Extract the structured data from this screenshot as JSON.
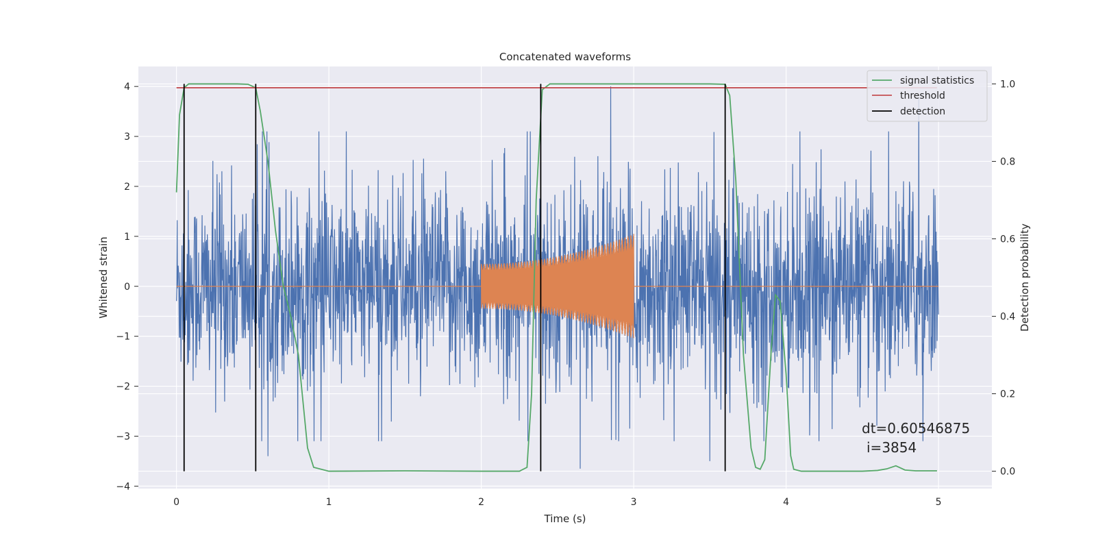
{
  "chart_data": {
    "type": "line",
    "title": "Concatenated waveforms",
    "xlabel": "Time (s)",
    "ylabel": "Whitened strain",
    "y2label": "Detection probability",
    "xlim": [
      -0.25,
      5.35
    ],
    "ylim": [
      -4.05,
      4.4
    ],
    "y2lim": [
      -0.045,
      1.045
    ],
    "xticks": [
      0,
      1,
      2,
      3,
      4,
      5
    ],
    "yticks": [
      -4,
      -3,
      -2,
      -1,
      0,
      1,
      2,
      3,
      4
    ],
    "y2ticks": [
      0.0,
      0.2,
      0.4,
      0.6,
      0.8,
      1.0
    ],
    "grid": true,
    "legend_position": "top-right",
    "colors": {
      "strain": "#4c72b0",
      "template": "#dd8452",
      "signal_statistics": "#55a868",
      "threshold": "#c44e52",
      "detection": "#000000",
      "background": "#eaeaf2",
      "grid": "#ffffff"
    },
    "series": [
      {
        "name": "signal statistics",
        "axis": "right",
        "x": [
          0.0,
          0.02,
          0.05,
          0.08,
          0.1,
          0.2,
          0.3,
          0.4,
          0.47,
          0.52,
          0.55,
          0.6,
          0.65,
          0.7,
          0.75,
          0.8,
          0.83,
          0.86,
          0.9,
          1.0,
          1.5,
          2.0,
          2.25,
          2.3,
          2.33,
          2.36,
          2.4,
          2.45,
          2.5,
          3.0,
          3.5,
          3.6,
          3.63,
          3.67,
          3.72,
          3.77,
          3.8,
          3.83,
          3.86,
          3.9,
          3.93,
          3.96,
          4.0,
          4.03,
          4.05,
          4.1,
          4.5,
          4.6,
          4.66,
          4.72,
          4.78,
          4.85,
          4.99
        ],
        "y": [
          0.72,
          0.92,
          0.99,
          1.0,
          1.0,
          1.0,
          1.0,
          1.0,
          0.999,
          0.99,
          0.93,
          0.8,
          0.62,
          0.48,
          0.4,
          0.3,
          0.18,
          0.06,
          0.01,
          0.0,
          0.001,
          0.0,
          0.0,
          0.01,
          0.2,
          0.7,
          0.985,
          1.0,
          1.0,
          1.0,
          1.0,
          0.999,
          0.97,
          0.75,
          0.3,
          0.06,
          0.01,
          0.005,
          0.03,
          0.3,
          0.455,
          0.44,
          0.25,
          0.04,
          0.005,
          0.0,
          0.0,
          0.002,
          0.006,
          0.014,
          0.003,
          0.001,
          0.001
        ]
      },
      {
        "name": "threshold",
        "axis": "right",
        "x": [
          0.0,
          4.99
        ],
        "y": [
          0.99,
          0.99
        ]
      },
      {
        "name": "detection",
        "axis": "right",
        "x_positions": [
          0.05,
          0.52,
          2.39,
          3.6
        ],
        "ymin": 0.0,
        "ymax": 1.0
      },
      {
        "axis": "left",
        "kind": "whitened strain noise",
        "x_range": [
          0.0,
          5.0
        ],
        "approx_envelope": 3.1,
        "extremes": [
          {
            "x": 2.85,
            "y": 4.0
          },
          {
            "x": 4.87,
            "y": 3.75
          },
          {
            "x": 2.65,
            "y": -3.65
          },
          {
            "x": 0.6,
            "y": -3.4
          },
          {
            "x": 3.5,
            "y": -3.5
          }
        ]
      },
      {
        "axis": "left",
        "kind": "injected chirp",
        "x_range": [
          2.0,
          3.0
        ],
        "amplitude_start": 0.45,
        "amplitude_end": 1.05,
        "flat_value": 0.0
      }
    ],
    "annotations": [
      "dt=0.60546875",
      "i=3854"
    ]
  },
  "legend": {
    "items": [
      "signal statistics",
      "threshold",
      "detection"
    ]
  }
}
